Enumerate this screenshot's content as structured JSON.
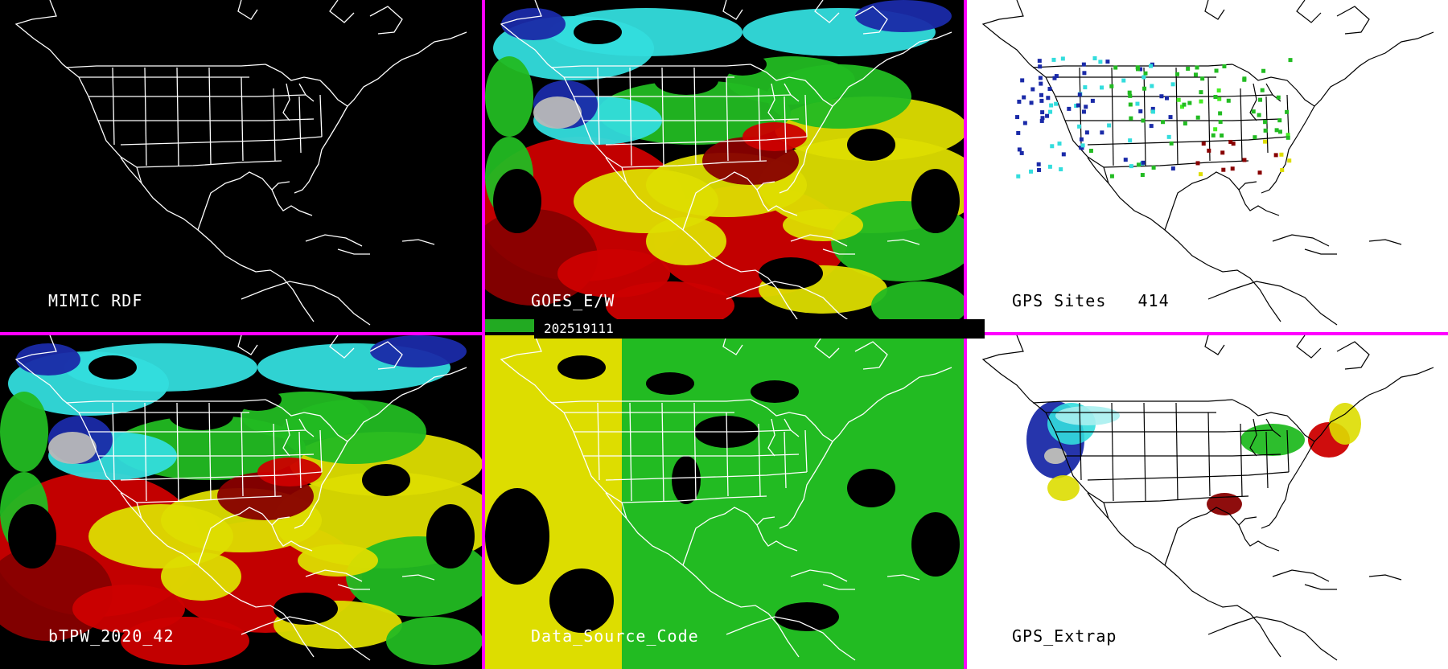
{
  "timestamp": "202519111",
  "panels": [
    {
      "id": "mimic",
      "label": "MIMIC RDF",
      "style": "dark"
    },
    {
      "id": "goes",
      "label": "GOES_E/W",
      "style": "dark"
    },
    {
      "id": "gps_sites",
      "label": "GPS Sites",
      "count": "414",
      "style": "light"
    },
    {
      "id": "btpw",
      "label": "bTPW_2020_42",
      "style": "dark"
    },
    {
      "id": "dsc",
      "label": "Data_Source_Code",
      "style": "dark"
    },
    {
      "id": "gps_extrap",
      "label": "GPS_Extrap",
      "style": "light"
    }
  ],
  "colors": {
    "separator": "#ff00ff",
    "grey": "#b8b8b8",
    "blue": "#1a2aa8",
    "cyan": "#33dddd",
    "lightcyan": "#a8f0f0",
    "green": "#22bb22",
    "lime": "#44ee22",
    "yellow": "#dddd00",
    "red": "#cc0000",
    "darkred": "#880000"
  }
}
